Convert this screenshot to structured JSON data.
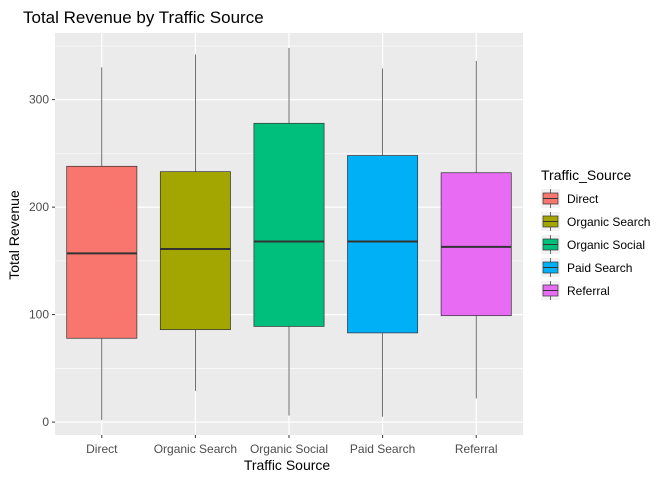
{
  "chart_data": {
    "type": "boxplot",
    "title": "Total Revenue by Traffic Source",
    "xlabel": "Traffic Source",
    "ylabel": "Total Revenue",
    "categories": [
      "Direct",
      "Organic Search",
      "Organic Social",
      "Paid Search",
      "Referral"
    ],
    "boxes": [
      {
        "category": "Direct",
        "min": 2,
        "q1": 78,
        "median": 157,
        "q3": 238,
        "max": 330,
        "color": "#F8766D"
      },
      {
        "category": "Organic Search",
        "min": 29,
        "q1": 86,
        "median": 161,
        "q3": 233,
        "max": 342,
        "color": "#A3A500"
      },
      {
        "category": "Organic Social",
        "min": 6,
        "q1": 89,
        "median": 168,
        "q3": 278,
        "max": 348,
        "color": "#00BF7D"
      },
      {
        "category": "Paid Search",
        "min": 5,
        "q1": 83,
        "median": 168,
        "q3": 248,
        "max": 329,
        "color": "#00B0F6"
      },
      {
        "category": "Referral",
        "min": 22,
        "q1": 99,
        "median": 163,
        "q3": 232,
        "max": 336,
        "color": "#E76BF3"
      }
    ],
    "ylim": [
      -12,
      362
    ],
    "yticks": [
      0,
      100,
      200,
      300
    ],
    "grid": true,
    "legend": {
      "title": "Traffic_Source",
      "placement": "right",
      "entries": [
        "Direct",
        "Organic Search",
        "Organic Social",
        "Paid Search",
        "Referral"
      ]
    },
    "colors": {
      "panel_background": "#EBEBEB",
      "grid_major": "#FFFFFF",
      "box_outline": "#333333"
    }
  }
}
